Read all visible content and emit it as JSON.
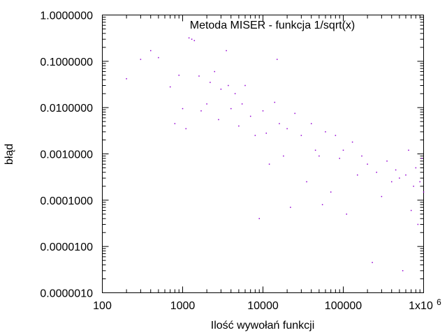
{
  "chart_data": {
    "type": "scatter",
    "title": "Metoda MISER - funkcja 1/sqrt(x)",
    "xlabel": "Ilość wywołań funkcji",
    "ylabel": "błąd",
    "xscale": "log",
    "yscale": "log",
    "xlim": [
      100,
      1000000
    ],
    "ylim": [
      1e-06,
      1
    ],
    "grid": false,
    "legend": "none",
    "marker_color": "#9400d3",
    "x_ticks": [
      {
        "value": 100,
        "label": "100"
      },
      {
        "value": 1000,
        "label": "1000"
      },
      {
        "value": 10000,
        "label": "10000"
      },
      {
        "value": 100000,
        "label": "100000"
      },
      {
        "value": 1000000,
        "label": "1x10",
        "exponent": "6"
      }
    ],
    "y_ticks": [
      {
        "value": 1,
        "label": "1.0000000"
      },
      {
        "value": 0.1,
        "label": "0.1000000"
      },
      {
        "value": 0.01,
        "label": "0.0100000"
      },
      {
        "value": 0.001,
        "label": "0.0010000"
      },
      {
        "value": 0.0001,
        "label": "0.0001000"
      },
      {
        "value": 1e-05,
        "label": "0.0000100"
      },
      {
        "value": 1e-06,
        "label": "0.0000010"
      }
    ],
    "series": [
      {
        "points": [
          [
            200,
            0.042
          ],
          [
            300,
            0.11
          ],
          [
            400,
            0.17
          ],
          [
            500,
            0.12
          ],
          [
            700,
            0.028
          ],
          [
            800,
            0.0045
          ],
          [
            900,
            0.05
          ],
          [
            1000,
            0.0095
          ],
          [
            1100,
            0.0035
          ],
          [
            1200,
            0.32
          ],
          [
            1300,
            0.3
          ],
          [
            1400,
            0.28
          ],
          [
            1600,
            0.048
          ],
          [
            1700,
            0.0085
          ],
          [
            2000,
            0.012
          ],
          [
            2200,
            0.035
          ],
          [
            2500,
            0.06
          ],
          [
            2800,
            0.0055
          ],
          [
            3000,
            0.025
          ],
          [
            3500,
            0.17
          ],
          [
            3700,
            0.03
          ],
          [
            4000,
            0.0095
          ],
          [
            4500,
            0.02
          ],
          [
            5000,
            0.004
          ],
          [
            5500,
            0.012
          ],
          [
            6000,
            0.03
          ],
          [
            7000,
            0.0065
          ],
          [
            8000,
            0.0025
          ],
          [
            9000,
            4e-05
          ],
          [
            10000,
            0.0085
          ],
          [
            11000,
            0.0028
          ],
          [
            12000,
            0.0006
          ],
          [
            14000,
            0.013
          ],
          [
            15000,
            0.11
          ],
          [
            16000,
            0.0045
          ],
          [
            18000,
            0.0009
          ],
          [
            20000,
            0.0035
          ],
          [
            22000,
            7e-05
          ],
          [
            25000,
            0.0075
          ],
          [
            30000,
            0.0025
          ],
          [
            35000,
            0.00025
          ],
          [
            40000,
            0.0045
          ],
          [
            45000,
            0.0012
          ],
          [
            50000,
            0.0009
          ],
          [
            55000,
            8e-05
          ],
          [
            60000,
            0.003
          ],
          [
            70000,
            0.00015
          ],
          [
            80000,
            0.0025
          ],
          [
            90000,
            0.0008
          ],
          [
            100000,
            0.0012
          ],
          [
            110000,
            5e-05
          ],
          [
            130000,
            0.0018
          ],
          [
            150000,
            0.00035
          ],
          [
            170000,
            0.0009
          ],
          [
            200000,
            0.0006
          ],
          [
            230000,
            4.5e-06
          ],
          [
            260000,
            0.0004
          ],
          [
            300000,
            0.00012
          ],
          [
            350000,
            0.0007
          ],
          [
            400000,
            0.00025
          ],
          [
            450000,
            0.00045
          ],
          [
            500000,
            0.0003
          ],
          [
            550000,
            3e-06
          ],
          [
            600000,
            0.00035
          ],
          [
            650000,
            0.0012
          ],
          [
            700000,
            6e-05
          ],
          [
            750000,
            0.0002
          ],
          [
            800000,
            0.0005
          ],
          [
            850000,
            3e-05
          ],
          [
            900000,
            0.00025
          ],
          [
            950000,
            0.0008
          ],
          [
            1000000,
            0.00015
          ]
        ]
      }
    ]
  }
}
